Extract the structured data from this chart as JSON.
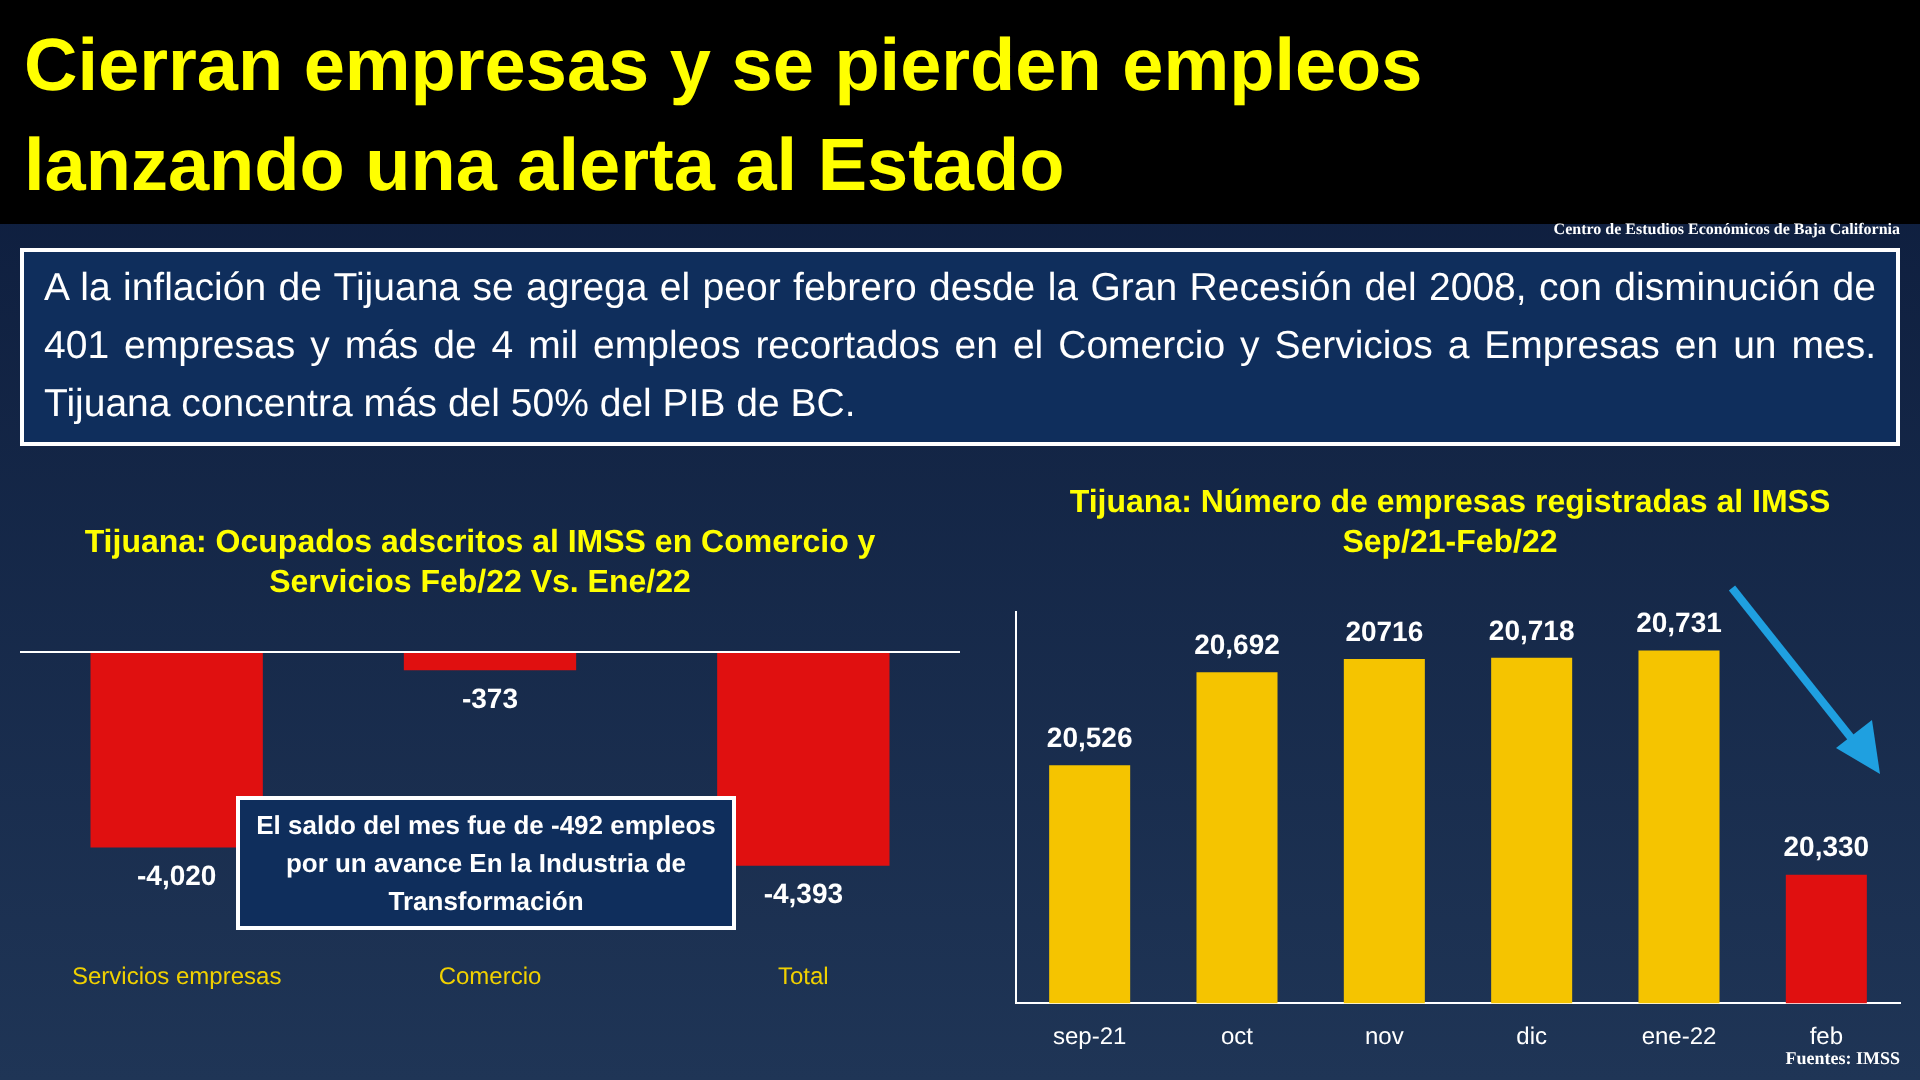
{
  "chart_data": [
    {
      "type": "bar",
      "title": "Tijuana: Ocupados adscritos al IMSS en Comercio y Servicios  Feb/22 Vs. Ene/22",
      "categories": [
        "Servicios empresas",
        "Comercio",
        "Total"
      ],
      "values": [
        -4020,
        -373,
        -4393
      ],
      "color": "#e01010",
      "value_labels": [
        "-4,020",
        "-373",
        "-4,393"
      ],
      "tick_labels": "x",
      "annotations": [
        "Cierran empresas y se pierden empleos lanzando una alerta al Estado",
        "Centro de Estudios Económicos de Baja California",
        "A la inflación de Tijuana se agrega el peor febrero desde la Gran Recesión del 2008, con disminución de 401 empresas y más de 4 mil empleos recortados en el Comercio y Servicios a Empresas en un mes. Tijuana concentra más del 50% del PIB de BC.",
        "El saldo del mes fue de -492 empleos por un avance En la Industria de Transformación"
      ]
    },
    {
      "type": "bar",
      "title": "Tijuana: Número de empresas registradas al IMSS  Sep/21-Feb/22",
      "categories": [
        "sep-21",
        "oct",
        "nov",
        "dic",
        "ene-22",
        "feb"
      ],
      "values": [
        20526,
        20692,
        20716,
        20718,
        20731,
        20330
      ],
      "colors": [
        "#f5c400",
        "#f5c400",
        "#f5c400",
        "#f5c400",
        "#f5c400",
        "#e01010"
      ],
      "value_labels": [
        "20,526",
        "20,692",
        "20716",
        "20,718",
        "20,731",
        "20,330"
      ],
      "ylim": [
        20100,
        20800
      ],
      "tick_labels": "x",
      "annotations": [
        "Fuentes: IMSS"
      ]
    }
  ]
}
